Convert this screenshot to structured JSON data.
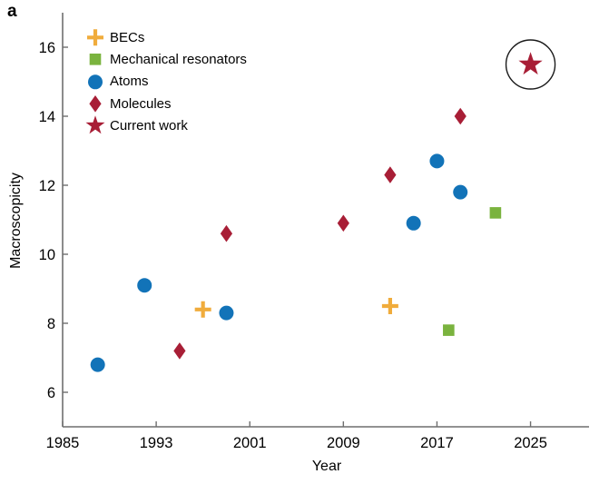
{
  "panel_label": "a",
  "colors": {
    "becs": "#f0ac3c",
    "mechanical_resonators": "#7ab33e",
    "atoms": "#1273b8",
    "molecules": "#a81e36",
    "current_work": "#a81e36",
    "axis": "#6f6f6f",
    "text": "#000000",
    "annotation_circle": "#1a1a1a",
    "background": "#ffffff"
  },
  "chart_data": {
    "type": "scatter",
    "title": "",
    "xlabel": "Year",
    "ylabel": "Macroscopicity",
    "xlim": [
      1985,
      2030
    ],
    "ylim": [
      5,
      17
    ],
    "x_ticks": [
      1985,
      1993,
      2001,
      2009,
      2017,
      2025
    ],
    "y_ticks": [
      6,
      8,
      10,
      12,
      14,
      16
    ],
    "grid": false,
    "legend_position": "top-left-inside",
    "series": [
      {
        "name": "BECs",
        "marker": "plus",
        "color": "#f0ac3c",
        "points": [
          {
            "x": 1997,
            "y": 8.4
          },
          {
            "x": 2013,
            "y": 8.5
          }
        ]
      },
      {
        "name": "Mechanical resonators",
        "marker": "square",
        "color": "#7ab33e",
        "points": [
          {
            "x": 2018,
            "y": 7.8
          },
          {
            "x": 2022,
            "y": 11.2
          }
        ]
      },
      {
        "name": "Atoms",
        "marker": "circle",
        "color": "#1273b8",
        "points": [
          {
            "x": 1988,
            "y": 6.8
          },
          {
            "x": 1992,
            "y": 9.1
          },
          {
            "x": 1999,
            "y": 8.3
          },
          {
            "x": 2015,
            "y": 10.9
          },
          {
            "x": 2017,
            "y": 12.7
          },
          {
            "x": 2019,
            "y": 11.8
          }
        ]
      },
      {
        "name": "Molecules",
        "marker": "diamond",
        "color": "#a81e36",
        "points": [
          {
            "x": 1995,
            "y": 7.2
          },
          {
            "x": 1999,
            "y": 10.6
          },
          {
            "x": 2009,
            "y": 10.9
          },
          {
            "x": 2013,
            "y": 12.3
          },
          {
            "x": 2019,
            "y": 14.0
          }
        ]
      },
      {
        "name": "Current work",
        "marker": "star",
        "color": "#a81e36",
        "points": [
          {
            "x": 2025,
            "y": 15.5
          }
        ]
      }
    ],
    "annotation": {
      "type": "circle",
      "x": 2025,
      "y": 15.5,
      "radius_px": 27
    }
  }
}
